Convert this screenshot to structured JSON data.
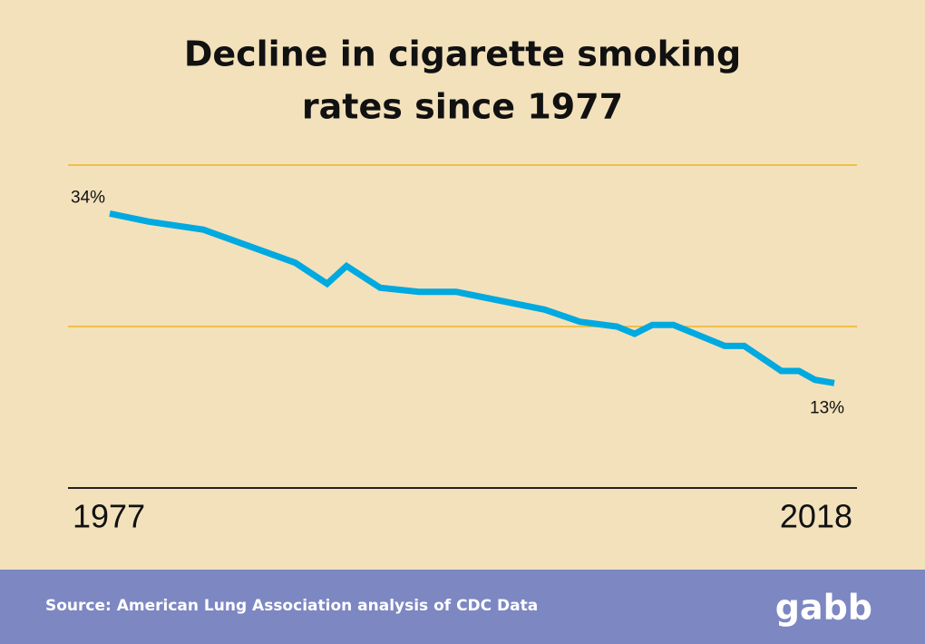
{
  "chart_data": {
    "type": "line",
    "title": [
      "Decline in cigarette smoking",
      "rates since 1977"
    ],
    "x": [
      1977,
      1979.2,
      1982.3,
      1987.5,
      1989.3,
      1990.4,
      1992.3,
      1994.5,
      1996.6,
      2001.6,
      2003.6,
      2005.7,
      2006.7,
      2007.7,
      2008.9,
      2011.8,
      2012.9,
      2015,
      2016,
      2016.9,
      2018
    ],
    "series": [
      {
        "name": "Smoking rate",
        "color": "#00a9e0",
        "values": [
          34,
          33.0,
          32.0,
          27.9,
          25.3,
          27.5,
          24.8,
          24.3,
          24.3,
          22.1,
          20.6,
          20.0,
          19.1,
          20.2,
          20.2,
          17.6,
          17.6,
          14.5,
          14.5,
          13.4,
          13
        ],
        "value_labels": [
          "34%",
          null,
          null,
          null,
          null,
          null,
          null,
          null,
          null,
          null,
          null,
          null,
          null,
          null,
          null,
          null,
          null,
          null,
          null,
          null,
          "13%"
        ]
      }
    ],
    "xlim": [
      1977,
      2018
    ],
    "xticks": [
      1977,
      2018
    ],
    "ylim": [
      0,
      40
    ],
    "yticks": [
      20,
      40
    ],
    "grid": true,
    "grid_color": "#f0b429",
    "axis_color": "#222222"
  },
  "footer": {
    "source": "Source: American Lung Association analysis of CDC Data",
    "brand": "gabb"
  }
}
